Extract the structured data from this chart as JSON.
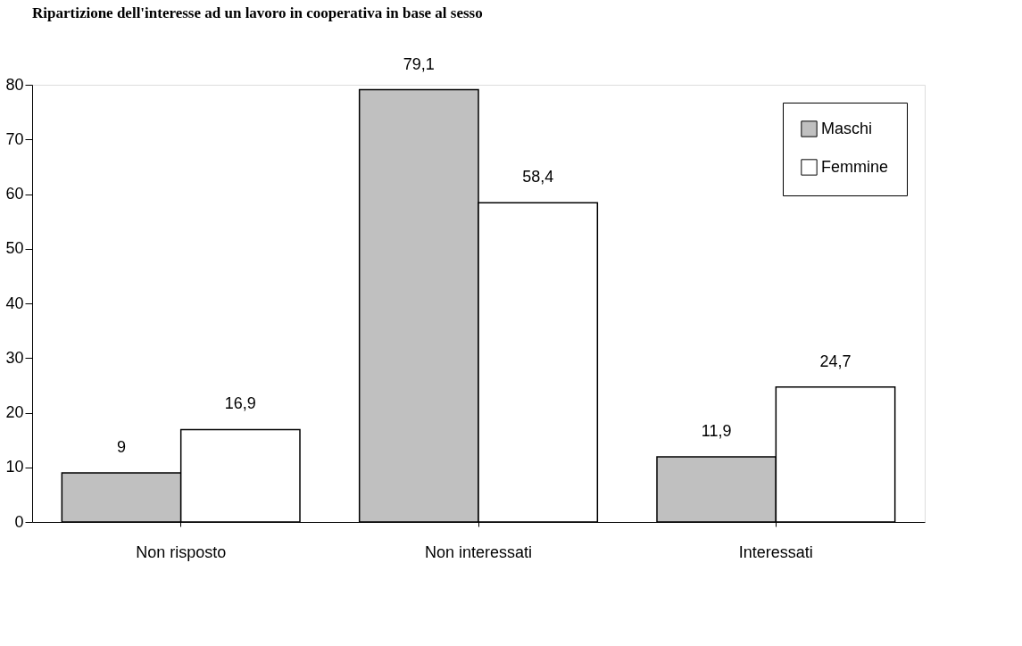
{
  "chart_data": {
    "type": "bar",
    "title": "Ripartizione dell'interesse ad un lavoro in cooperativa in base al sesso",
    "categories": [
      "Non risposto",
      "Non interessati",
      "Interessati"
    ],
    "series": [
      {
        "name": "Maschi",
        "color": "#c0c0c0",
        "values": [
          9,
          79.1,
          11.9
        ],
        "value_labels": [
          "9",
          "79,1",
          "11,9"
        ]
      },
      {
        "name": "Femmine",
        "color": "#ffffff",
        "values": [
          16.9,
          58.4,
          24.7
        ],
        "value_labels": [
          "16,9",
          "58,4",
          "24,7"
        ]
      }
    ],
    "ylim": [
      0,
      80
    ],
    "yticks": [
      0,
      10,
      20,
      30,
      40,
      50,
      60,
      70,
      80
    ],
    "grid": false,
    "legend": "top right"
  }
}
